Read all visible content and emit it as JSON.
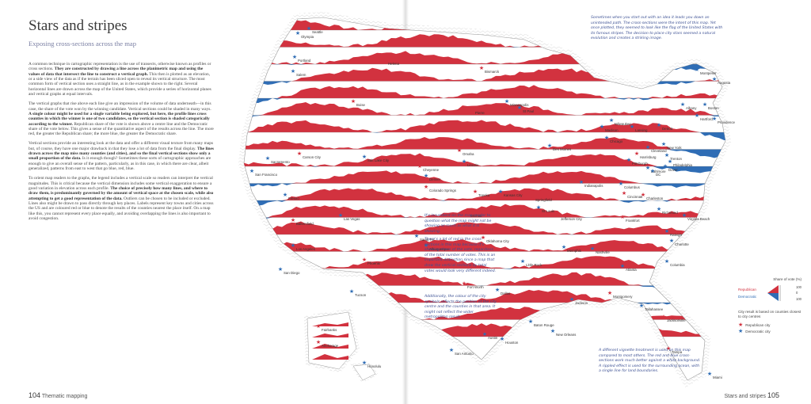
{
  "page": {
    "title": "Stars and stripes",
    "subtitle": "Exposing cross-sections across the map",
    "paragraphs": [
      "A common technique in cartographic representation is the use of transects, otherwise known as profiles or cross sections. They are constructed by drawing a line across the planimetric map and using the values of data that intersect the line to construct a vertical graph. This then is plotted as an elevation, or a side view of the data as if the terrain has been sliced open to reveal its vertical structure. The most common form of vertical section uses a straight line, as in the example shown to the right. Several horizontal lines are drawn across the map of the United States, which provide a series of horizontal planes and vertical graphs at equal intervals.",
      "The vertical graphs that rise above each line give an impression of the volume of data underneath—in this case, the share of the vote won by the winning candidate. Vertical sections could be shaded in many ways. A single colour might be used for a single variable being explored, but here, the profile lines cross counties in which the winner is one of two candidates, so the vertical section is shaded categorically according to the winner. Republican share of the vote is shown above a centre line and the Democratic share of the vote below. This gives a sense of the quantitative aspect of the results across the line. The more red, the greater the Republican share; the more blue, the greater the Democratic share.",
      "Vertical sections provide an interesting look at the data and offer a different visual texture from many maps but, of course, they have one major drawback in that they lose a lot of data from the final display. The lines drawn across the map miss many counties (and cities), and so the final vertical sections show only a small proportion of the data. Is it enough though? Sometimes these sorts of cartographic approaches are enough to give an overall sense of the pattern, particularly, as in this case, in which there are clear, albeit generalized, patterns from east to west that go blue, red, blue.",
      "To orient map readers to the graphs, the legend includes a vertical scale so readers can interpret the vertical magnitudes. This is critical because the vertical dimension includes some vertical exaggeration to ensure a good variation in elevation across each profile. The choice of precisely how many lines, and where to draw them, is predominantly governed by the amount of vertical space at the chosen scale, while also attempting to get a good representation of the data. Outliers can be chosen to be included or excluded. Lines also might be drawn to pass directly through key places. Labels represent key towns and cities across the US and are coloured red or blue to denote the results of the counties nearest the place itself. On a map like this, you cannot represent every place equally, and avoiding overlapping the lines is also important to avoid congestion."
    ],
    "folio_left": {
      "num": "104",
      "label": "Thematic mapping"
    },
    "folio_right": {
      "num": "105",
      "label": "Stars and stripes"
    }
  },
  "notes": {
    "top_right": "Sometimes when you start out with an idea it leads you down an unintended path. The cross-sections were the intent of this map. Yet once plotted, they seemed to look like the flag of the United States with its famous stripes. The decision to place city stars seemed a natural evolution and creates a striking image.",
    "middle": "It's incumbent on the map reader to question what the map might not be showing as much as what it is showing.",
    "bias": "There's a lot of red in the cross-sections in this map because it's showing share of the vote, regardless of the total number of votes. This is an important distinction since a map that drew the vertical sections by total votes would look very different indeed.",
    "symbols": "Additionally, the colour of the city symbols reflects the position of the city centre and the counties in that area. It might not reflect the wider metropolitan result.",
    "bottom": "A different vignette treatment is used on this map compared to most others. The red and blue cross-sections work much better against a white background. A rippled effect is used for the surrounding ocean, with a single line for land boundaries."
  },
  "legend": {
    "title": "Share of vote (%)",
    "republican": "Republican",
    "democratic": "Democratic",
    "scale_top": "100",
    "scale_mid": "0",
    "scale_bottom": "100",
    "city_note": "City result is based on counties closest to city centres",
    "rep_city": "Republican city",
    "dem_city": "Democratic city"
  },
  "colors": {
    "republican": "#d2323f",
    "democratic": "#2f6db5",
    "ink": "#333333",
    "note": "#3b4f93"
  },
  "cities": [
    {
      "name": "Seattle",
      "party": "D"
    },
    {
      "name": "Olympia",
      "party": "D"
    },
    {
      "name": "Portland",
      "party": "D"
    },
    {
      "name": "Salem",
      "party": "D"
    },
    {
      "name": "Helena",
      "party": "R"
    },
    {
      "name": "Bismarck",
      "party": "R"
    },
    {
      "name": "Boise",
      "party": "R"
    },
    {
      "name": "Pierre",
      "party": "R"
    },
    {
      "name": "Minneapolis",
      "party": "D"
    },
    {
      "name": "St Paul",
      "party": "D"
    },
    {
      "name": "Montpelier",
      "party": "D"
    },
    {
      "name": "Augusta",
      "party": "D"
    },
    {
      "name": "Albany",
      "party": "D"
    },
    {
      "name": "Boston",
      "party": "D"
    },
    {
      "name": "Hartford",
      "party": "D"
    },
    {
      "name": "Providence",
      "party": "D"
    },
    {
      "name": "Madison",
      "party": "D"
    },
    {
      "name": "Milwaukee",
      "party": "D"
    },
    {
      "name": "Lansing",
      "party": "D"
    },
    {
      "name": "Detroit",
      "party": "D"
    },
    {
      "name": "Chicago",
      "party": "D"
    },
    {
      "name": "Cleveland",
      "party": "D"
    },
    {
      "name": "New York",
      "party": "D"
    },
    {
      "name": "Trenton",
      "party": "D"
    },
    {
      "name": "Harrisburg",
      "party": "R"
    },
    {
      "name": "Philadelphia",
      "party": "D"
    },
    {
      "name": "Pittsburgh",
      "party": "D"
    },
    {
      "name": "Baltimore",
      "party": "D"
    },
    {
      "name": "Dover",
      "party": "D"
    },
    {
      "name": "DC",
      "party": "D"
    },
    {
      "name": "Sacramento",
      "party": "D"
    },
    {
      "name": "Carson City",
      "party": "R"
    },
    {
      "name": "Salt Lake City",
      "party": "D"
    },
    {
      "name": "Cheyenne",
      "party": "R"
    },
    {
      "name": "Omaha",
      "party": "R"
    },
    {
      "name": "Lincoln",
      "party": "D"
    },
    {
      "name": "Des Moines",
      "party": "D"
    },
    {
      "name": "Columbus",
      "party": "D"
    },
    {
      "name": "Indianapolis",
      "party": "D"
    },
    {
      "name": "Cincinnati",
      "party": "R"
    },
    {
      "name": "San Francisco",
      "party": "D"
    },
    {
      "name": "Denver",
      "party": "D"
    },
    {
      "name": "Colorado Springs",
      "party": "R"
    },
    {
      "name": "Topeka",
      "party": "R"
    },
    {
      "name": "Kansas City",
      "party": "D"
    },
    {
      "name": "Springfield",
      "party": "R"
    },
    {
      "name": "St Louis",
      "party": "D"
    },
    {
      "name": "Charleston",
      "party": "R"
    },
    {
      "name": "Richmond",
      "party": "D"
    },
    {
      "name": "Frankfort",
      "party": "R"
    },
    {
      "name": "Jefferson City",
      "party": "R"
    },
    {
      "name": "Fresno",
      "party": "D"
    },
    {
      "name": "Bakersfield",
      "party": "R"
    },
    {
      "name": "Las Vegas",
      "party": "D"
    },
    {
      "name": "Wichita",
      "party": "R"
    },
    {
      "name": "Virginia Beach",
      "party": "D"
    },
    {
      "name": "Raleigh",
      "party": "D"
    },
    {
      "name": "Los Angeles",
      "party": "D"
    },
    {
      "name": "Santa Fe",
      "party": "D"
    },
    {
      "name": "Albuquerque",
      "party": "D"
    },
    {
      "name": "Oklahoma City",
      "party": "R"
    },
    {
      "name": "Memphis",
      "party": "D"
    },
    {
      "name": "Nashville",
      "party": "D"
    },
    {
      "name": "Charlotte",
      "party": "D"
    },
    {
      "name": "Columbia",
      "party": "D"
    },
    {
      "name": "Phoenix",
      "party": "R"
    },
    {
      "name": "San Diego",
      "party": "D"
    },
    {
      "name": "Little Rock",
      "party": "D"
    },
    {
      "name": "Atlanta",
      "party": "D"
    },
    {
      "name": "Tucson",
      "party": "D"
    },
    {
      "name": "Fort Worth",
      "party": "R"
    },
    {
      "name": "Dallas",
      "party": "D"
    },
    {
      "name": "Jackson",
      "party": "D"
    },
    {
      "name": "Montgomery",
      "party": "R"
    },
    {
      "name": "Tallahassee",
      "party": "D"
    },
    {
      "name": "Jacksonville",
      "party": "R"
    },
    {
      "name": "Baton Rouge",
      "party": "D"
    },
    {
      "name": "Austin",
      "party": "D"
    },
    {
      "name": "Houston",
      "party": "D"
    },
    {
      "name": "New Orleans",
      "party": "D"
    },
    {
      "name": "San Antonio",
      "party": "D"
    },
    {
      "name": "Tampa",
      "party": "R"
    },
    {
      "name": "Miami",
      "party": "D"
    },
    {
      "name": "Fairbanks",
      "party": "R"
    },
    {
      "name": "Anchorage",
      "party": "R"
    },
    {
      "name": "Honolulu",
      "party": "D"
    }
  ]
}
